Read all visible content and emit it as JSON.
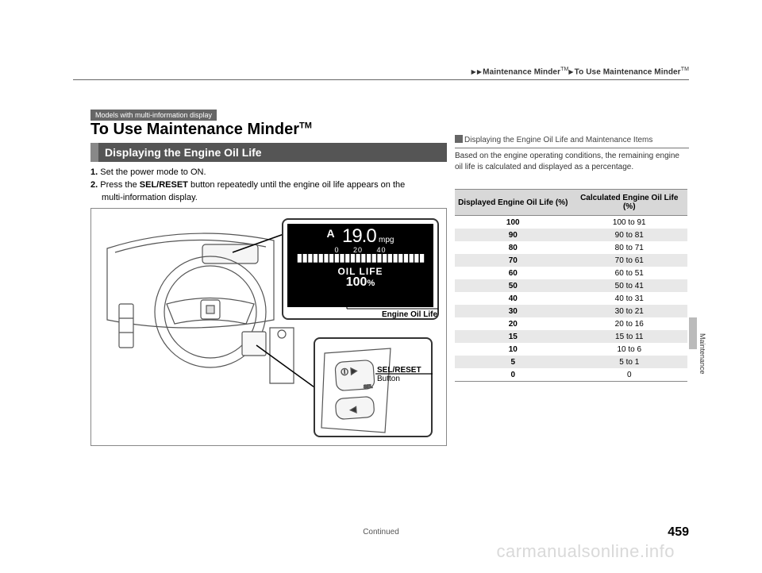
{
  "header": {
    "breadcrumb_1": "Maintenance Minder",
    "breadcrumb_tm": "TM",
    "breadcrumb_2": "To Use Maintenance Minder",
    "tag": "Models with multi-information display",
    "title": "To Use Maintenance Minder",
    "title_tm": "TM"
  },
  "subsection": {
    "title": "Displaying the Engine Oil Life"
  },
  "steps": {
    "s1_num": "1.",
    "s1": "Set the power mode to ON.",
    "s2_num": "2.",
    "s2a": "Press the ",
    "s2b": "SEL/RESET",
    "s2c": " button repeatedly until the engine oil life appears on the",
    "s2d": "multi-information display."
  },
  "figure": {
    "display": {
      "trip_letter": "A",
      "mpg_value": "19.0",
      "mpg_unit": "mpg",
      "scale_left": "0",
      "scale_mid": "20",
      "scale_right": "40",
      "oil_life_label": "OIL LIFE",
      "oil_life_value": "100",
      "oil_life_pct": "%"
    },
    "label_oil": "Engine Oil Life",
    "label_btn_1": "SEL/RESET",
    "label_btn_2": "Button"
  },
  "sidebar": {
    "heading": "Displaying the Engine Oil Life and Maintenance Items",
    "text": "Based on the engine operating conditions, the remaining engine oil life is calculated and displayed as a percentage.",
    "table": {
      "header_left": "Displayed Engine Oil Life (%)",
      "header_right": "Calculated Engine Oil Life (%)",
      "rows": [
        {
          "l": "100",
          "r": "100 to 91"
        },
        {
          "l": "90",
          "r": "90 to 81"
        },
        {
          "l": "80",
          "r": "80 to 71"
        },
        {
          "l": "70",
          "r": "70 to 61"
        },
        {
          "l": "60",
          "r": "60 to 51"
        },
        {
          "l": "50",
          "r": "50 to 41"
        },
        {
          "l": "40",
          "r": "40 to 31"
        },
        {
          "l": "30",
          "r": "30 to 21"
        },
        {
          "l": "20",
          "r": "20 to 16"
        },
        {
          "l": "15",
          "r": "15 to 11"
        },
        {
          "l": "10",
          "r": "10 to 6"
        },
        {
          "l": "5",
          "r": "5 to 1"
        },
        {
          "l": "0",
          "r": "0"
        }
      ]
    }
  },
  "footer": {
    "continued": "Continued",
    "page": "459",
    "tab": "Maintenance",
    "watermark": "carmanualsonline.info"
  }
}
